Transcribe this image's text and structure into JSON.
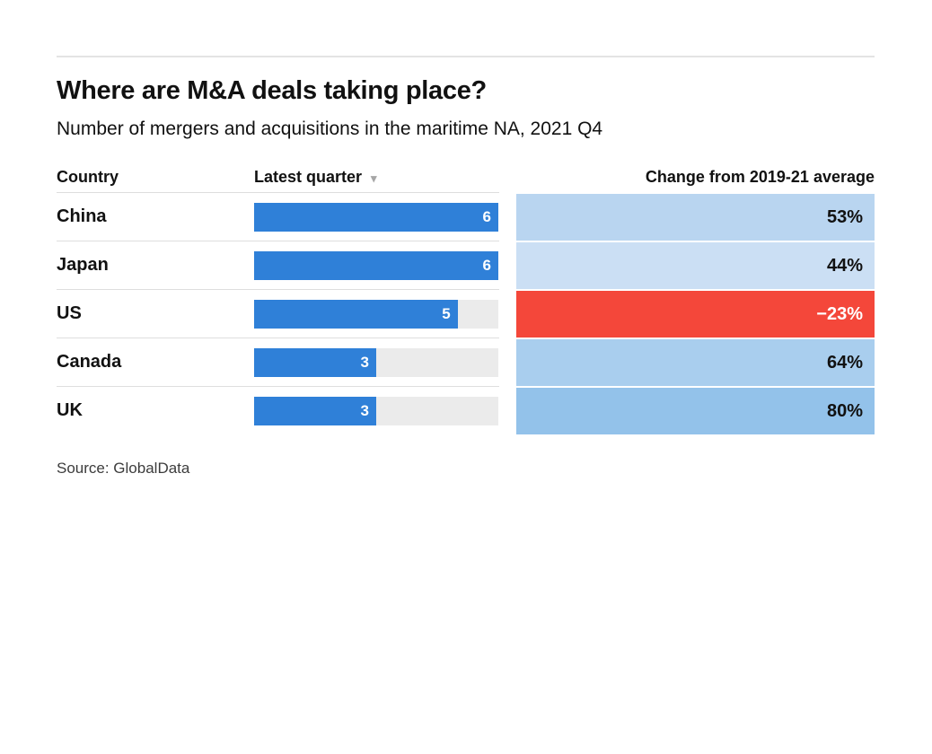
{
  "header": {
    "title": "Where are M&A deals taking place?",
    "subtitle": "Number of mergers and acquisitions in the maritime NA, 2021 Q4"
  },
  "table": {
    "columns": {
      "country": "Country",
      "latest_quarter": "Latest quarter",
      "change": "Change from 2019-21 average"
    },
    "sort_icon": "▾",
    "max_value": 6,
    "rows": [
      {
        "country": "China",
        "value": 6,
        "change": 53,
        "change_label": "53%",
        "cell_color": "#b9d5f0",
        "text_color": "#111111"
      },
      {
        "country": "Japan",
        "value": 6,
        "change": 44,
        "change_label": "44%",
        "cell_color": "#cbdff4",
        "text_color": "#111111"
      },
      {
        "country": "US",
        "value": 5,
        "change": -23,
        "change_label": "−23%",
        "cell_color": "#f4473a",
        "text_color": "#ffffff"
      },
      {
        "country": "Canada",
        "value": 3,
        "change": 64,
        "change_label": "64%",
        "cell_color": "#a9ceee",
        "text_color": "#111111"
      },
      {
        "country": "UK",
        "value": 3,
        "change": 80,
        "change_label": "80%",
        "cell_color": "#93c2ea",
        "text_color": "#111111"
      }
    ]
  },
  "footer": {
    "source": "Source: GlobalData"
  },
  "colors": {
    "bar": "#2f80d8",
    "bar_track": "#ebebeb",
    "negative": "#f4473a",
    "rule": "#e4e4e4",
    "row_divider": "#dedede"
  },
  "chart_data": {
    "type": "bar",
    "title": "Where are M&A deals taking place?",
    "subtitle": "Number of mergers and acquisitions in the maritime NA, 2021 Q4",
    "categories": [
      "China",
      "Japan",
      "US",
      "Canada",
      "UK"
    ],
    "series": [
      {
        "name": "Latest quarter",
        "values": [
          6,
          6,
          5,
          3,
          3
        ]
      },
      {
        "name": "Change from 2019-21 average (%)",
        "values": [
          53,
          44,
          -23,
          64,
          80
        ]
      }
    ],
    "xlim": [
      0,
      6
    ],
    "grid": false,
    "legend_position": "none",
    "sort": "Latest quarter descending",
    "source": "Source: GlobalData"
  }
}
